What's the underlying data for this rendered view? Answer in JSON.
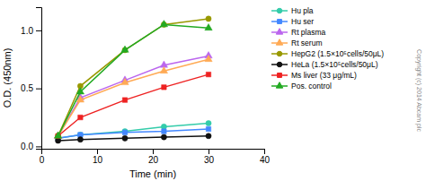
{
  "chart_data": {
    "type": "line",
    "x": [
      3,
      7,
      15,
      22,
      30
    ],
    "series": [
      {
        "name": "Hu pla",
        "values": [
          0.07,
          0.1,
          0.13,
          0.17,
          0.2
        ],
        "color": "#33CCAA",
        "marker": "circle"
      },
      {
        "name": "Hu ser",
        "values": [
          0.07,
          0.1,
          0.12,
          0.13,
          0.15
        ],
        "color": "#4488FF",
        "marker": "square"
      },
      {
        "name": "Rt plasma",
        "values": [
          0.09,
          0.42,
          0.57,
          0.7,
          0.78
        ],
        "color": "#BB66EE",
        "marker": "triangle"
      },
      {
        "name": "Rt serum",
        "values": [
          0.09,
          0.4,
          0.55,
          0.65,
          0.75
        ],
        "color": "#FFAA55",
        "marker": "triangle"
      },
      {
        "name": "HepG2 (1.5×10⁵cells/50μL)",
        "values": [
          0.09,
          0.52,
          0.83,
          1.05,
          1.1
        ],
        "color": "#999900",
        "marker": "circle"
      },
      {
        "name": "HeLa (1.5×10⁵cells/50μL)",
        "values": [
          0.05,
          0.06,
          0.07,
          0.08,
          0.09
        ],
        "color": "#111111",
        "marker": "circle"
      },
      {
        "name": "Ms liver (33 μg/mL)",
        "values": [
          0.09,
          0.25,
          0.4,
          0.51,
          0.62
        ],
        "color": "#EE2222",
        "marker": "square"
      },
      {
        "name": "Pos. control",
        "values": [
          0.09,
          0.47,
          0.83,
          1.05,
          1.02
        ],
        "color": "#22AA22",
        "marker": "triangle"
      }
    ],
    "xlabel": "Time (min)",
    "ylabel": "O.D. (450nm)",
    "xlim": [
      0,
      40
    ],
    "ylim": [
      -0.02,
      1.2
    ],
    "xticks": [
      0,
      10,
      20,
      30,
      40
    ],
    "yticks": [
      {
        "value": 0,
        "label": "0.0"
      },
      0.5,
      {
        "value": 1,
        "label": "1.0"
      }
    ],
    "legend": "right",
    "annotations": [
      "Copyright (c) 2014 Abcam plc"
    ]
  }
}
